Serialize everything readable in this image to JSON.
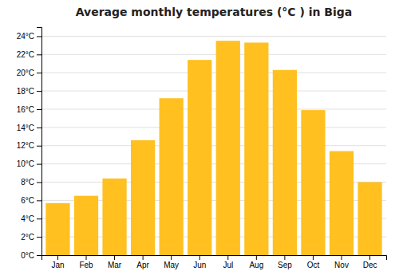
{
  "chart_data": {
    "type": "bar",
    "title": "Average monthly temperatures (°C ) in Biga",
    "categories": [
      "Jan",
      "Feb",
      "Mar",
      "Apr",
      "May",
      "Jun",
      "Jul",
      "Aug",
      "Sep",
      "Oct",
      "Nov",
      "Dec"
    ],
    "values": [
      5.7,
      6.5,
      8.4,
      12.6,
      17.2,
      21.4,
      23.5,
      23.3,
      20.3,
      15.9,
      11.4,
      8.0
    ],
    "color": "#FFC020",
    "ylim": [
      0,
      25
    ],
    "yticks": [
      {
        "value": 0,
        "label": "0°C"
      },
      {
        "value": 2,
        "label": "2°C"
      },
      {
        "value": 4,
        "label": "4°C"
      },
      {
        "value": 6,
        "label": "6°C"
      },
      {
        "value": 8,
        "label": "8°C"
      },
      {
        "value": 10,
        "label": "10°C"
      },
      {
        "value": 12,
        "label": "12°C"
      },
      {
        "value": 14,
        "label": "14°C"
      },
      {
        "value": 16,
        "label": "16°C"
      },
      {
        "value": 18,
        "label": "18°C"
      },
      {
        "value": 20,
        "label": "20°C"
      },
      {
        "value": 22,
        "label": "22°C"
      },
      {
        "value": 24,
        "label": "24°C"
      }
    ],
    "grid": true
  }
}
